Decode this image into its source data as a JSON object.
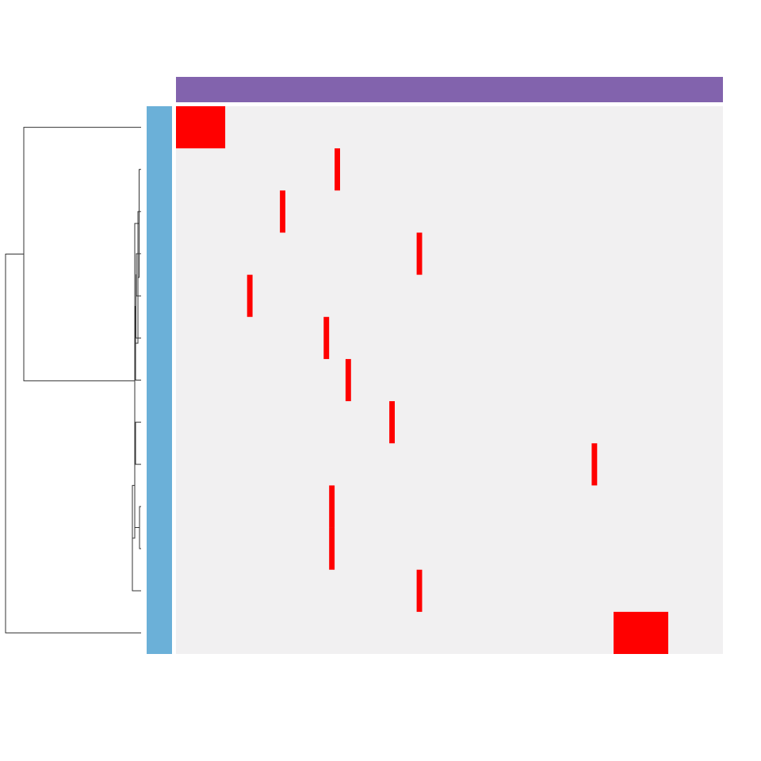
{
  "colors": {
    "background": "#ffffff",
    "cell_background": "#f1f0f1",
    "highlight": "#ff0000",
    "column_annotation": "#8263ad",
    "row_annotation": "#6bb0d8",
    "dendrogram_line": "#333333"
  },
  "chart_data": {
    "type": "heatmap",
    "title": "",
    "xlabel": "",
    "ylabel": "",
    "n_rows": 13,
    "n_cols": 100,
    "grid": false,
    "legend": "none",
    "column_annotation": {
      "position": "top",
      "color": "#8263ad"
    },
    "row_annotation": {
      "position": "left",
      "color": "#6bb0d8"
    },
    "row_dendrogram": {
      "position": "left",
      "shown": true
    },
    "column_dendrogram": {
      "shown": false
    },
    "background_value": 0,
    "highlight_value": 1,
    "highlighted_cells": [
      {
        "row": 1,
        "col_start": 1,
        "col_end": 9
      },
      {
        "row": 2,
        "col_start": 30,
        "col_end": 30
      },
      {
        "row": 3,
        "col_start": 20,
        "col_end": 20
      },
      {
        "row": 4,
        "col_start": 45,
        "col_end": 45
      },
      {
        "row": 5,
        "col_start": 14,
        "col_end": 14
      },
      {
        "row": 6,
        "col_start": 28,
        "col_end": 28
      },
      {
        "row": 7,
        "col_start": 32,
        "col_end": 32
      },
      {
        "row": 8,
        "col_start": 40,
        "col_end": 40
      },
      {
        "row": 9,
        "col_start": 77,
        "col_end": 77
      },
      {
        "row": 10,
        "col_start": 29,
        "col_end": 29
      },
      {
        "row": 11,
        "col_start": 29,
        "col_end": 29
      },
      {
        "row": 12,
        "col_start": 45,
        "col_end": 45
      },
      {
        "row": 13,
        "col_start": 81,
        "col_end": 90
      }
    ]
  }
}
